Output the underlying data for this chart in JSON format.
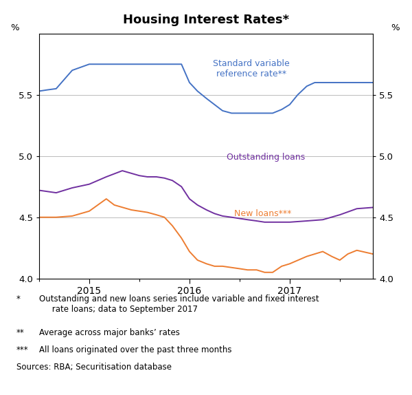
{
  "title": "Housing Interest Rates*",
  "xlim_start": 2014.5,
  "xlim_end": 2017.83,
  "ylim": [
    4.0,
    6.0
  ],
  "yticks": [
    4.0,
    4.5,
    5.0,
    5.5
  ],
  "xticks": [
    2015,
    2016,
    2017
  ],
  "background_color": "#ffffff",
  "grid_color": "#bbbbbb",
  "svr_label": "Standard variable\nreference rate**",
  "svr_color": "#4472c4",
  "svr_x": [
    2014.5,
    2014.58,
    2014.67,
    2014.83,
    2015.0,
    2015.17,
    2015.33,
    2015.5,
    2015.67,
    2015.75,
    2015.83,
    2015.92,
    2016.0,
    2016.08,
    2016.17,
    2016.25,
    2016.33,
    2016.42,
    2016.5,
    2016.58,
    2016.67,
    2016.75,
    2016.83,
    2016.92,
    2017.0,
    2017.08,
    2017.17,
    2017.25,
    2017.33,
    2017.5,
    2017.67,
    2017.83
  ],
  "svr_y": [
    5.53,
    5.54,
    5.55,
    5.7,
    5.75,
    5.75,
    5.75,
    5.75,
    5.75,
    5.75,
    5.75,
    5.75,
    5.6,
    5.53,
    5.47,
    5.42,
    5.37,
    5.35,
    5.35,
    5.35,
    5.35,
    5.35,
    5.35,
    5.38,
    5.42,
    5.5,
    5.57,
    5.6,
    5.6,
    5.6,
    5.6,
    5.6
  ],
  "outstanding_label": "Outstanding loans",
  "outstanding_color": "#7030a0",
  "outstanding_x": [
    2014.5,
    2014.67,
    2014.83,
    2015.0,
    2015.17,
    2015.33,
    2015.5,
    2015.58,
    2015.67,
    2015.75,
    2015.83,
    2015.92,
    2016.0,
    2016.08,
    2016.17,
    2016.25,
    2016.33,
    2016.42,
    2016.5,
    2016.58,
    2016.67,
    2016.75,
    2016.83,
    2016.92,
    2017.0,
    2017.17,
    2017.33,
    2017.5,
    2017.67,
    2017.83
  ],
  "outstanding_y": [
    4.72,
    4.7,
    4.74,
    4.77,
    4.83,
    4.88,
    4.84,
    4.83,
    4.83,
    4.82,
    4.8,
    4.75,
    4.65,
    4.6,
    4.56,
    4.53,
    4.51,
    4.5,
    4.49,
    4.48,
    4.47,
    4.46,
    4.46,
    4.46,
    4.46,
    4.47,
    4.48,
    4.52,
    4.57,
    4.58
  ],
  "newloans_label": "New loans***",
  "newloans_color": "#ed7d31",
  "newloans_x": [
    2014.5,
    2014.67,
    2014.83,
    2015.0,
    2015.17,
    2015.25,
    2015.42,
    2015.58,
    2015.67,
    2015.75,
    2015.83,
    2015.92,
    2016.0,
    2016.08,
    2016.17,
    2016.25,
    2016.33,
    2016.5,
    2016.58,
    2016.67,
    2016.75,
    2016.83,
    2016.92,
    2017.0,
    2017.17,
    2017.33,
    2017.42,
    2017.5,
    2017.58,
    2017.67,
    2017.83
  ],
  "newloans_y": [
    4.5,
    4.5,
    4.51,
    4.55,
    4.65,
    4.6,
    4.56,
    4.54,
    4.52,
    4.5,
    4.43,
    4.33,
    4.22,
    4.15,
    4.12,
    4.1,
    4.1,
    4.08,
    4.07,
    4.07,
    4.05,
    4.05,
    4.1,
    4.12,
    4.18,
    4.22,
    4.18,
    4.15,
    4.2,
    4.23,
    4.2
  ],
  "footnote1_star": "*",
  "footnote1_text": "Outstanding and new loans series include variable and fixed interest\n     rate loans; data to September 2017",
  "footnote2_star": "**",
  "footnote2_text": "Average across major banks’ rates",
  "footnote3_star": "***",
  "footnote3_text": "All loans originated over the past three months",
  "footnote4": "Sources: RBA; Securitisation database"
}
